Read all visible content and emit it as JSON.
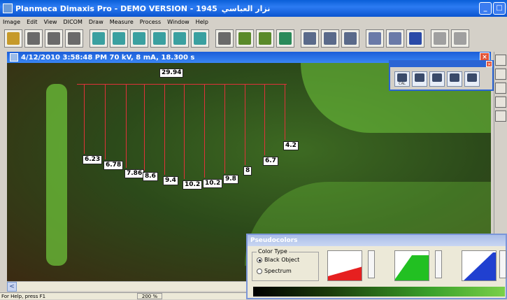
{
  "window": {
    "title": "Planmeca Dimaxis Pro - DEMO VERSION - 1945",
    "title_rtl": "نزار العباسي",
    "buttons": [
      "_",
      "□"
    ]
  },
  "menu": [
    "Image",
    "Edit",
    "View",
    "DICOM",
    "Draw",
    "Measure",
    "Process",
    "Window",
    "Help"
  ],
  "toolbar": {
    "tools": [
      {
        "icon": "patient-icon",
        "color": "#c69a2a"
      },
      {
        "icon": "open-image-icon",
        "color": "#6a6a6a"
      },
      {
        "icon": "scanner-icon",
        "color": "#6a6a6a"
      },
      {
        "icon": "archive-icon",
        "color": "#6a6a6a"
      },
      {
        "icon": "crop-icon",
        "color": "#3aa0a0"
      },
      {
        "icon": "select-icon",
        "color": "#3aa0a0"
      },
      {
        "icon": "tooth-icon",
        "color": "#3aa0a0"
      },
      {
        "icon": "rotate-icon",
        "color": "#3aa0a0"
      },
      {
        "icon": "layer-icon",
        "color": "#3aa0a0"
      },
      {
        "icon": "edit-icon",
        "color": "#3aa0a0"
      },
      {
        "icon": "eye-icon",
        "color": "#6a6a6a"
      },
      {
        "icon": "ruler-icon",
        "color": "#5a8a2a"
      },
      {
        "icon": "pen-icon",
        "color": "#5a8a2a"
      },
      {
        "icon": "globe-icon",
        "color": "#2a8a5a"
      },
      {
        "icon": "zoom-in-icon",
        "color": "#5a6a8a"
      },
      {
        "icon": "zoom-out-icon",
        "color": "#5a6a8a"
      },
      {
        "icon": "pan-icon",
        "color": "#5a6a8a"
      },
      {
        "icon": "flip-icon",
        "color": "#6a7aa8"
      },
      {
        "icon": "mirror-icon",
        "color": "#6a7aa8"
      },
      {
        "icon": "export-icon",
        "color": "#2a4aa8"
      },
      {
        "icon": "undo-icon",
        "color": "#a0a0a0"
      },
      {
        "icon": "redo-icon",
        "color": "#a0a0a0"
      }
    ]
  },
  "image_window": {
    "title": "4/12/2010  3:58:48 PM    70 kV, 8 mA, 18.300 s",
    "close": "×"
  },
  "measurements": {
    "total": "29.94",
    "values": [
      "6.23",
      "6.78",
      "7.86",
      "8.6",
      "9.4",
      "10.2",
      "10.2",
      "9.8",
      "8",
      "6.7",
      "4.2"
    ]
  },
  "float_toolbar": {
    "close": "×",
    "buttons": [
      {
        "icon": "calibrate-icon",
        "caption": "CAL"
      },
      {
        "icon": "measure-icon",
        "caption": ""
      },
      {
        "icon": "angle-icon",
        "caption": ""
      },
      {
        "icon": "line-measure-icon",
        "caption": ""
      },
      {
        "icon": "area-measure-icon",
        "caption": ""
      }
    ]
  },
  "pseudocolors": {
    "title": "Pseudocolors",
    "group_label": "Color Type",
    "options": [
      {
        "label": "Black Object",
        "selected": true
      },
      {
        "label": "Spectrum",
        "selected": false
      }
    ],
    "swatch_colors": [
      "#e62020",
      "#22c022",
      "#2040d0"
    ]
  },
  "status": {
    "help": "For Help, press F1",
    "zoom": "200 %"
  }
}
